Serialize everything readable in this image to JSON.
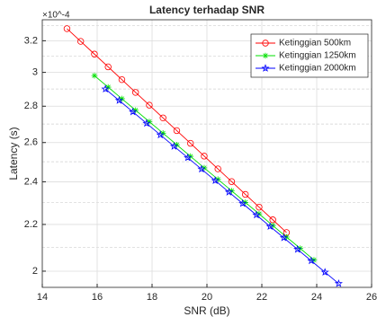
{
  "chart_data": {
    "type": "line",
    "title": "Latency terhadap SNR",
    "x_label": "SNR (dB)",
    "y_label": "Latency (s)",
    "y_exponent": "×10^-4",
    "y_log": true,
    "grid": true,
    "legend_position": "upper right",
    "xlim": [
      14,
      26
    ],
    "xticks": [
      14,
      16,
      18,
      20,
      22,
      24,
      26
    ],
    "ylim": [
      0.0001935,
      0.000334
    ],
    "yticks": [
      {
        "value": 0.0002,
        "label": "2"
      },
      {
        "value": 0.00022,
        "label": "2.2"
      },
      {
        "value": 0.00024,
        "label": "2.4"
      },
      {
        "value": 0.00026,
        "label": "2.6"
      },
      {
        "value": 0.00028,
        "label": "2.8"
      },
      {
        "value": 0.0003,
        "label": "3"
      },
      {
        "value": 0.00032,
        "label": "3.2"
      }
    ],
    "minor_yticks": [
      0.00021,
      0.00023,
      0.00025,
      0.00027,
      0.00029,
      0.00031,
      0.00033
    ],
    "series": [
      {
        "name": "Ketinggian 500km",
        "color": "#ff0000",
        "marker": "circle",
        "x": [
          14.9,
          15.4,
          15.9,
          16.4,
          16.9,
          17.4,
          17.9,
          18.4,
          18.9,
          19.4,
          19.9,
          20.4,
          20.9,
          21.4,
          21.9,
          22.4,
          22.9
        ],
        "values": [
          0.000328,
          0.0003196,
          0.0003114,
          0.0003034,
          0.0002956,
          0.000288,
          0.0002806,
          0.0002734,
          0.0002664,
          0.0002596,
          0.0002529,
          0.0002464,
          0.0002401,
          0.0002339,
          0.0002279,
          0.0002221,
          0.0002164
        ]
      },
      {
        "name": "Ketinggian 1250km",
        "color": "#00e000",
        "marker": "asterisk",
        "x": [
          15.9,
          16.4,
          16.9,
          17.4,
          17.9,
          18.4,
          18.9,
          19.4,
          19.9,
          20.4,
          20.9,
          21.4,
          21.9,
          22.4,
          22.9,
          23.4,
          23.9
        ],
        "values": [
          0.000298,
          0.0002911,
          0.0002843,
          0.0002777,
          0.0002713,
          0.000265,
          0.0002588,
          0.0002528,
          0.0002469,
          0.0002412,
          0.0002356,
          0.0002301,
          0.0002248,
          0.0002195,
          0.0002144,
          0.0002095,
          0.0002046
        ]
      },
      {
        "name": "Ketinggian 2000km",
        "color": "#0000ff",
        "marker": "star",
        "x": [
          16.3,
          16.8,
          17.3,
          17.8,
          18.3,
          18.8,
          19.3,
          19.8,
          20.3,
          20.8,
          21.3,
          21.8,
          22.3,
          22.8,
          23.3,
          23.8,
          24.3,
          24.8
        ],
        "values": [
          0.00029,
          0.0002833,
          0.0002768,
          0.0002704,
          0.0002641,
          0.000258,
          0.0002521,
          0.0002463,
          0.0002406,
          0.000235,
          0.0002296,
          0.0002243,
          0.0002191,
          0.0002141,
          0.0002091,
          0.0002043,
          0.0001996,
          0.000195
        ]
      }
    ]
  }
}
